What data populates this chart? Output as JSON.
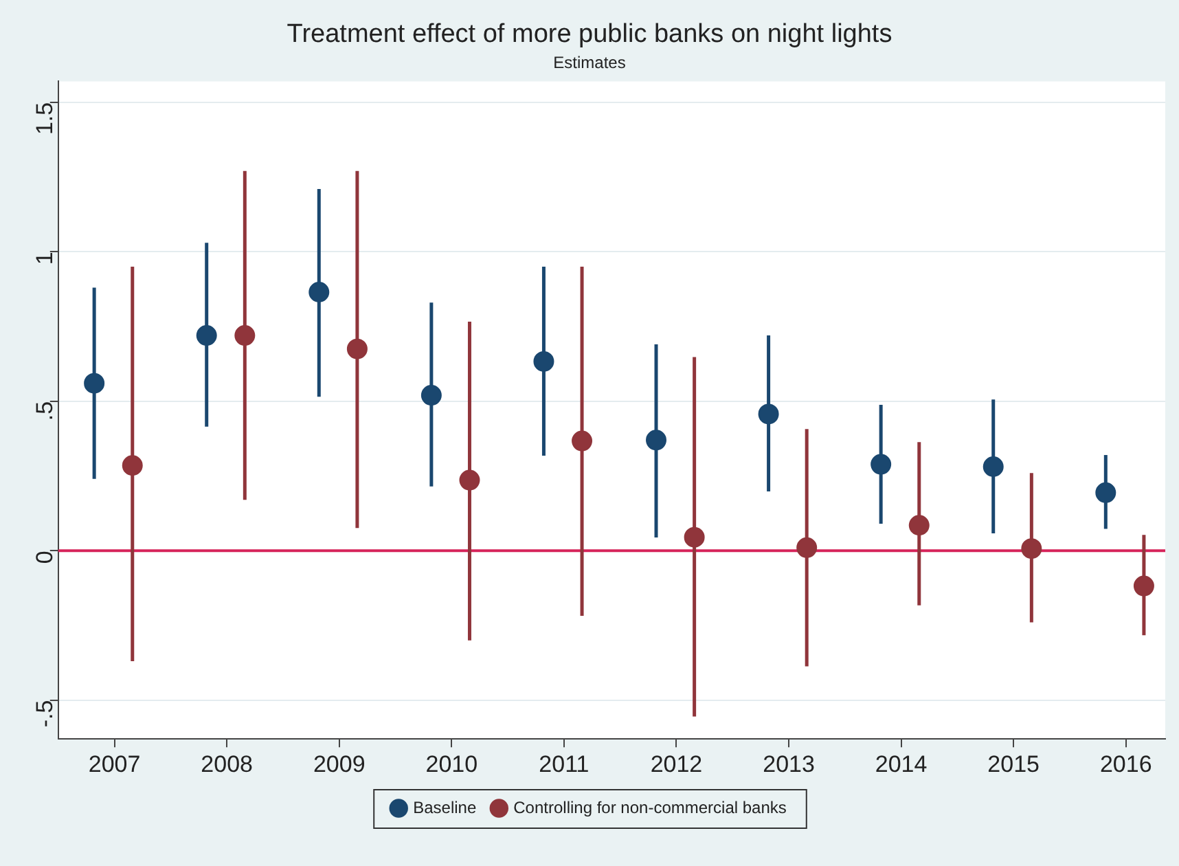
{
  "chart_data": {
    "type": "scatter",
    "title": "Treatment effect of more public banks on night lights",
    "subtitle": "Estimates",
    "series": [
      {
        "name": "Baseline",
        "color": "#1a476f",
        "x": [
          2006.82,
          2007.82,
          2008.82,
          2009.82,
          2010.82,
          2011.82,
          2012.82,
          2013.82,
          2014.82,
          2015.82
        ],
        "values": [
          0.56,
          0.72,
          0.865,
          0.52,
          0.633,
          0.37,
          0.457,
          0.289,
          0.281,
          0.194
        ],
        "errors": [
          [
            0.24,
            0.88
          ],
          [
            0.415,
            1.03
          ],
          [
            0.515,
            1.21
          ],
          [
            0.215,
            0.83
          ],
          [
            0.318,
            0.95
          ],
          [
            0.044,
            0.69
          ],
          [
            0.198,
            0.72
          ],
          [
            0.09,
            0.488
          ],
          [
            0.058,
            0.506
          ],
          [
            0.073,
            0.32
          ]
        ]
      },
      {
        "name": "Controlling for non-commercial banks",
        "color": "#90353b",
        "x": [
          2007.16,
          2008.16,
          2009.16,
          2010.16,
          2011.16,
          2012.16,
          2013.16,
          2014.16,
          2015.16,
          2016.16
        ],
        "values": [
          0.285,
          0.72,
          0.675,
          0.236,
          0.367,
          0.045,
          0.01,
          0.085,
          0.007,
          -0.118
        ],
        "errors": [
          [
            -0.37,
            0.95
          ],
          [
            0.17,
            1.27
          ],
          [
            0.076,
            1.27
          ],
          [
            -0.3,
            0.766
          ],
          [
            -0.218,
            0.95
          ],
          [
            -0.555,
            0.648
          ],
          [
            -0.387,
            0.407
          ],
          [
            -0.183,
            0.363
          ],
          [
            -0.24,
            0.26
          ],
          [
            -0.283,
            0.053
          ]
        ]
      }
    ],
    "xlim": [
      2006.5,
      2016.35
    ],
    "xticks": [
      2007,
      2008,
      2009,
      2010,
      2011,
      2012,
      2013,
      2014,
      2015,
      2016
    ],
    "ylim": [
      -0.63,
      1.57
    ],
    "yticks": [
      {
        "value": -0.5,
        "label": "-.5"
      },
      0,
      {
        "value": 0.5,
        "label": ".5"
      },
      1,
      1.5
    ],
    "ref_lines": [
      {
        "axis": "y",
        "value": 0,
        "color": "#d6245a"
      }
    ],
    "grid": "y",
    "legend": "bottom",
    "marker": "circle"
  }
}
